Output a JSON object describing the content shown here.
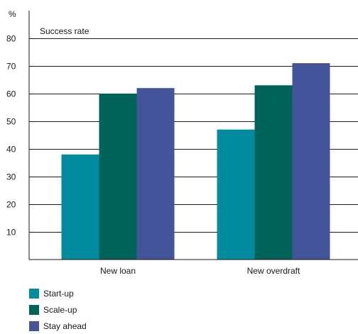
{
  "chart_data": {
    "type": "bar",
    "title": "Success rate",
    "y_unit_label": "%",
    "categories": [
      "New loan",
      "New overdraft"
    ],
    "series": [
      {
        "name": "Start-up",
        "values": [
          38,
          47
        ],
        "color": "#008c9e"
      },
      {
        "name": "Scale-up",
        "values": [
          60,
          63
        ],
        "color": "#00635a"
      },
      {
        "name": "Stay ahead",
        "values": [
          62,
          71
        ],
        "color": "#44549b"
      }
    ],
    "ylim": [
      0,
      90
    ],
    "y_ticks": [
      10,
      20,
      30,
      40,
      50,
      60,
      70,
      80
    ],
    "grid": true,
    "legend_position": "bottom-left"
  }
}
